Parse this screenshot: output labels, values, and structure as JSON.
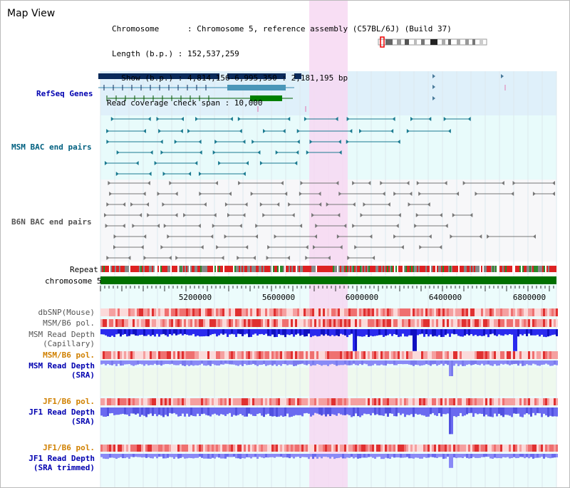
{
  "page_title": "Map View",
  "info": {
    "chromosome": "Chromosome      : Chromosome 5, reference assembly (C57BL/6J) (Build 37)",
    "length": "Length (b.p.) : 152,537,259",
    "show": "  Show (b.p.) : 4,814,156-6,995,350 : 2,181,195 bp",
    "coverage": "Read coverage check span : 10,000"
  },
  "tracks": {
    "refseq": "RefSeq Genes",
    "msm_bac": "MSM BAC end pairs",
    "b6n_bac": "B6N BAC end pairs",
    "repeat": "Repeat",
    "chromosome": "chromosome 5",
    "dbsnp": "dbSNP(Mouse)",
    "msm_b6_pol_1": "MSM/B6 pol.",
    "msm_read_depth_cap_1": "MSM Read Depth",
    "msm_read_depth_cap_2": "(Capillary)",
    "msm_b6_pol_2": "MSM/B6 pol.",
    "msm_read_depth_sra_1": "MSM Read Depth",
    "msm_read_depth_sra_2": "(SRA)",
    "jf1_b6_pol_1": "JF1/B6 pol.",
    "jf1_read_depth_1": "JF1 Read Depth",
    "jf1_read_depth_2": "(SRA)",
    "jf1_b6_pol_2": "JF1/B6 pol.",
    "jf1_read_depth_trim_1": "JF1 Read Depth",
    "jf1_read_depth_trim_2": "(SRA trimmed)"
  },
  "axis": {
    "ticks": [
      "5200000",
      "5600000",
      "6000000",
      "6400000",
      "6800000"
    ]
  },
  "colors": {
    "refseq_bg": "#dff0fa",
    "bac_bg": "#e8fbfb",
    "highlight": "#f7d8f2",
    "label_blue": "#0000b0",
    "label_teal": "#006080",
    "label_gray": "#555555",
    "label_orange": "#d08000",
    "chrom_green": "#007000"
  }
}
